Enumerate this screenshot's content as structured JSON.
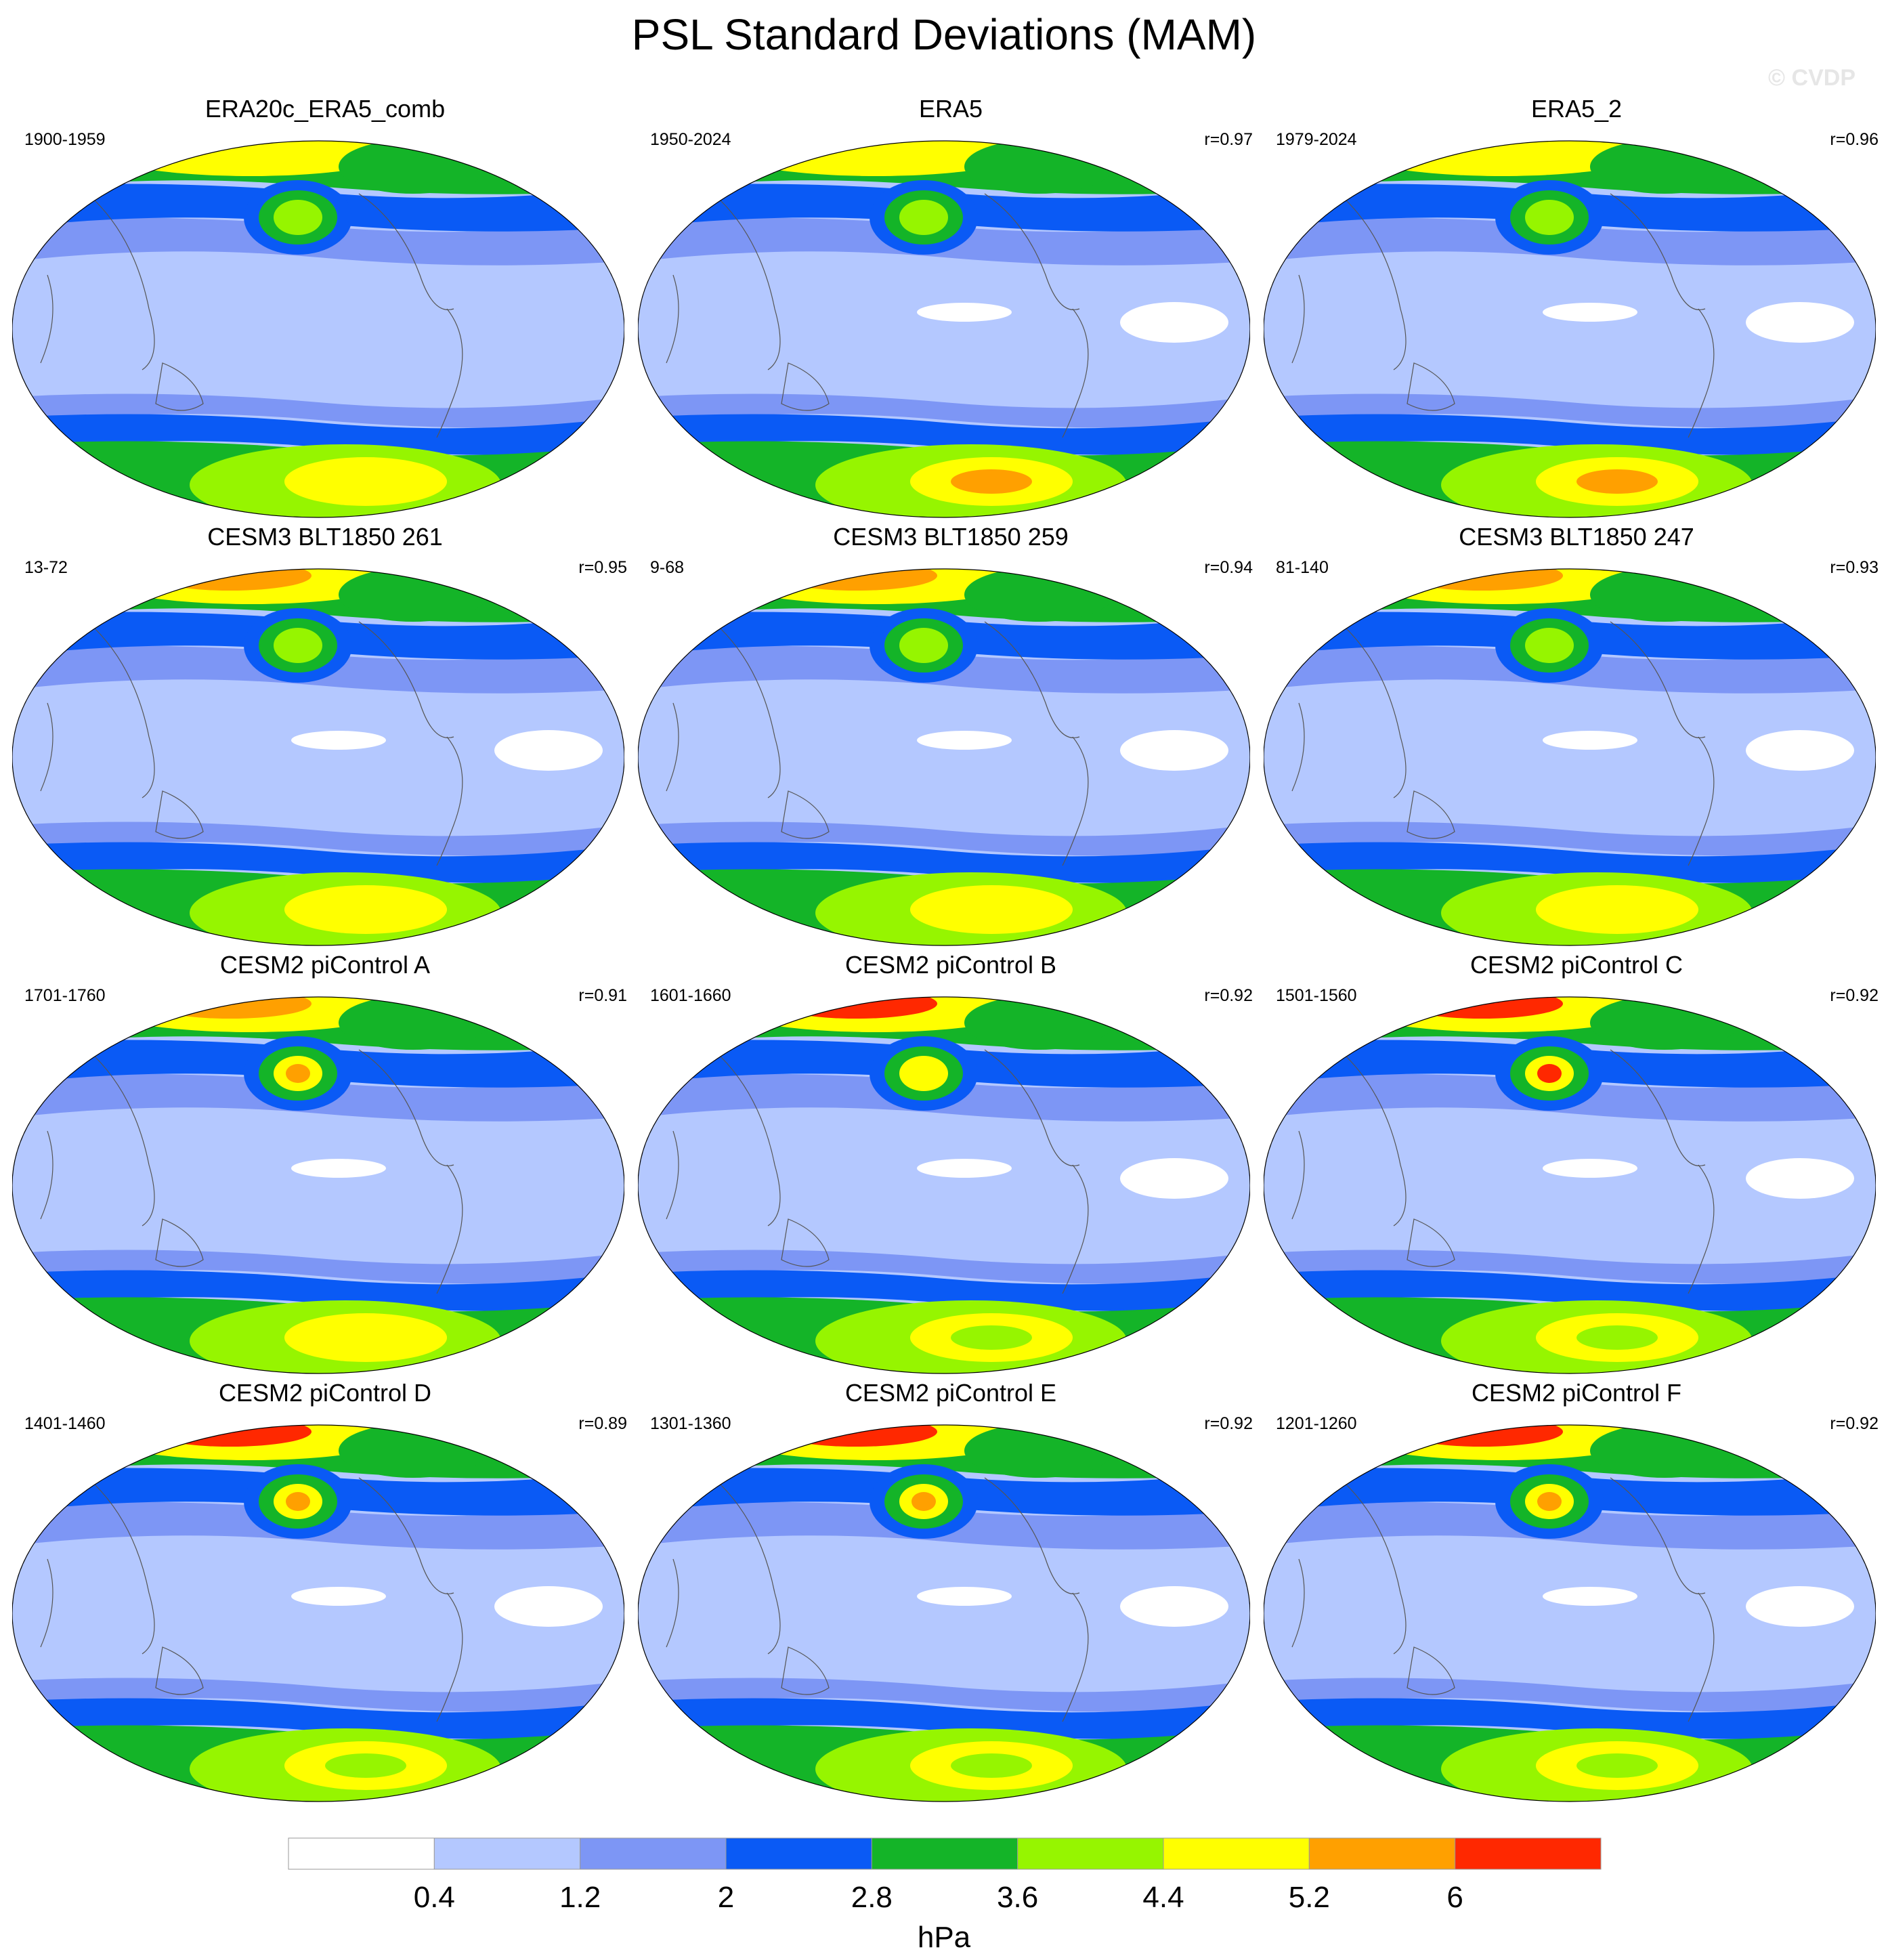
{
  "title": "PSL Standard Deviations (MAM)",
  "watermark": "© CVDP",
  "colorbar": {
    "ticks": [
      "0.4",
      "1.2",
      "2",
      "2.8",
      "3.6",
      "4.4",
      "5.2",
      "6"
    ],
    "colors": [
      "#ffffff",
      "#b4c8ff",
      "#7d96f5",
      "#0a5af5",
      "#14b428",
      "#96f500",
      "#ffff00",
      "#ffa000",
      "#ff2800"
    ],
    "units": "hPa"
  },
  "panels": [
    {
      "title": "ERA20c_ERA5_comb",
      "period": "1900-1959",
      "r": "",
      "nh": 5.0,
      "ant": 4.9,
      "aleu": 4.3,
      "sa": 0.5,
      "ind": 0.5
    },
    {
      "title": "ERA5",
      "period": "1950-2024",
      "r": "r=0.97",
      "nh": 5.0,
      "ant": 5.2,
      "aleu": 4.1,
      "sa": 0.3,
      "ind": 0.3
    },
    {
      "title": "ERA5_2",
      "period": "1979-2024",
      "r": "r=0.96",
      "nh": 5.0,
      "ant": 5.3,
      "aleu": 4.0,
      "sa": 0.3,
      "ind": 0.3
    },
    {
      "title": "CESM3 BLT1850 261",
      "period": "13-72",
      "r": "r=0.95",
      "nh": 5.5,
      "ant": 4.8,
      "aleu": 4.3,
      "sa": 0.3,
      "ind": 0.3
    },
    {
      "title": "CESM3 BLT1850 259",
      "period": "9-68",
      "r": "r=0.94",
      "nh": 5.5,
      "ant": 4.7,
      "aleu": 4.2,
      "sa": 0.3,
      "ind": 0.3
    },
    {
      "title": "CESM3 BLT1850 247",
      "period": "81-140",
      "r": "r=0.93",
      "nh": 5.4,
      "ant": 4.5,
      "aleu": 4.0,
      "sa": 0.3,
      "ind": 0.3
    },
    {
      "title": "CESM2 piControl A",
      "period": "1701-1760",
      "r": "r=0.91",
      "nh": 5.2,
      "ant": 4.5,
      "aleu": 5.4,
      "sa": 0.3,
      "ind": 0.5
    },
    {
      "title": "CESM2 piControl B",
      "period": "1601-1660",
      "r": "r=0.92",
      "nh": 6.3,
      "ant": 4.3,
      "aleu": 5.0,
      "sa": 0.3,
      "ind": 0.3
    },
    {
      "title": "CESM2 piControl C",
      "period": "1501-1560",
      "r": "r=0.92",
      "nh": 6.2,
      "ant": 4.2,
      "aleu": 6.2,
      "sa": 0.3,
      "ind": 0.3
    },
    {
      "title": "CESM2 piControl D",
      "period": "1401-1460",
      "r": "r=0.89",
      "nh": 6.3,
      "ant": 4.2,
      "aleu": 5.5,
      "sa": 0.3,
      "ind": 0.3
    },
    {
      "title": "CESM2 piControl E",
      "period": "1301-1360",
      "r": "r=0.92",
      "nh": 6.2,
      "ant": 4.2,
      "aleu": 5.5,
      "sa": 0.3,
      "ind": 0.3
    },
    {
      "title": "CESM2 piControl F",
      "period": "1201-1260",
      "r": "r=0.92",
      "nh": 6.4,
      "ant": 4.2,
      "aleu": 5.6,
      "sa": 0.3,
      "ind": 0.3
    }
  ]
}
